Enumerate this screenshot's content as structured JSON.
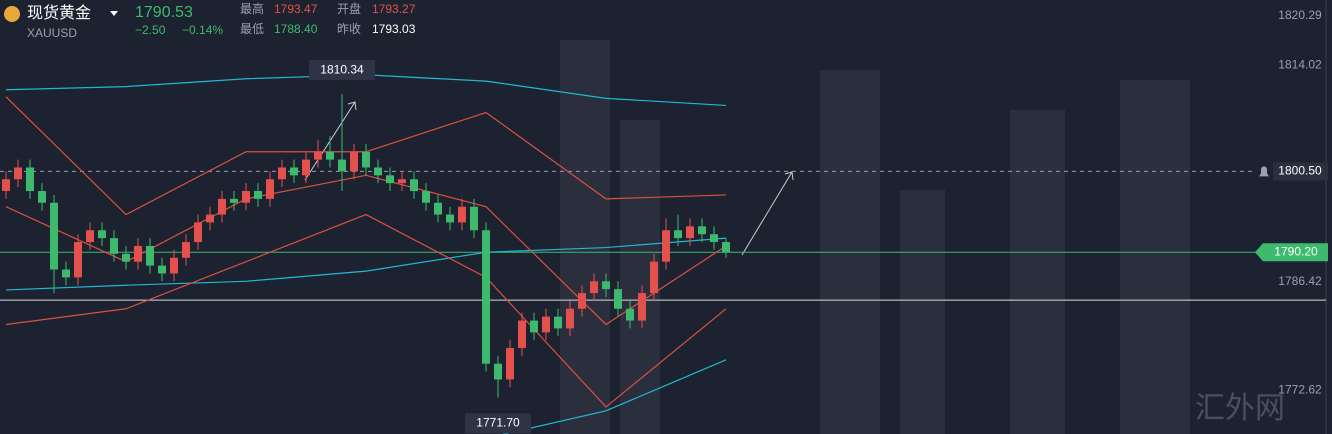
{
  "header": {
    "name": "现货黄金",
    "symbol": "XAUUSD",
    "price": "1790.53",
    "change": "−2.50",
    "change_pct": "−0.14%",
    "high_label": "最高",
    "high": "1793.47",
    "open_label": "开盘",
    "open": "1793.27",
    "low_label": "最低",
    "low": "1788.40",
    "prev_label": "昨收",
    "prev_close": "1793.03"
  },
  "watermark": "汇外网",
  "chart_data": {
    "type": "candlestick",
    "up_color": "#e4514c",
    "down_color": "#3dba6d",
    "open": [
      1798.0,
      1799.5,
      1801.0,
      1798.0,
      1796.5,
      1788.0,
      1787.0,
      1791.5,
      1793.0,
      1792.0,
      1790.0,
      1789.0,
      1791.0,
      1788.5,
      1787.5,
      1789.5,
      1791.5,
      1794.0,
      1795.0,
      1797.0,
      1796.5,
      1798.0,
      1797.0,
      1799.5,
      1801.0,
      1800.0,
      1802.0,
      1803.0,
      1802.0,
      1800.5,
      1803.0,
      1801.0,
      1800.0,
      1799.0,
      1799.5,
      1798.0,
      1796.5,
      1795.0,
      1794.0,
      1796.0,
      1793.0,
      1776.0,
      1774.0,
      1778.0,
      1781.5,
      1780.0,
      1782.0,
      1780.5,
      1783.0,
      1785.0,
      1786.5,
      1785.5,
      1783.0,
      1781.5,
      1785.0,
      1789.0,
      1793.0,
      1792.0,
      1793.5,
      1792.5,
      1791.5
    ],
    "high": [
      1800.5,
      1802.0,
      1802.0,
      1799.0,
      1797.5,
      1789.0,
      1792.5,
      1794.0,
      1794.0,
      1793.0,
      1791.0,
      1792.0,
      1792.0,
      1789.5,
      1790.5,
      1792.5,
      1795.0,
      1796.0,
      1798.0,
      1798.0,
      1799.0,
      1799.0,
      1800.5,
      1802.0,
      1802.0,
      1803.0,
      1804.5,
      1805.0,
      1810.34,
      1804.0,
      1804.0,
      1802.0,
      1801.0,
      1800.5,
      1800.5,
      1799.0,
      1797.5,
      1796.0,
      1797.0,
      1797.0,
      1794.0,
      1777.0,
      1779.0,
      1782.5,
      1782.5,
      1783.0,
      1783.0,
      1784.0,
      1786.0,
      1787.5,
      1787.5,
      1786.5,
      1784.0,
      1786.0,
      1790.0,
      1794.5,
      1795.0,
      1794.5,
      1794.5,
      1793.5,
      1792.0
    ],
    "low": [
      1797.0,
      1798.5,
      1797.0,
      1795.5,
      1785.0,
      1786.0,
      1786.0,
      1790.5,
      1791.0,
      1789.0,
      1788.0,
      1788.0,
      1787.5,
      1786.5,
      1786.5,
      1788.5,
      1790.5,
      1793.0,
      1794.0,
      1795.5,
      1795.5,
      1796.0,
      1796.0,
      1798.5,
      1799.0,
      1799.0,
      1801.0,
      1801.0,
      1798.0,
      1799.5,
      1800.0,
      1799.0,
      1798.0,
      1798.0,
      1797.0,
      1795.5,
      1794.0,
      1793.0,
      1793.0,
      1792.0,
      1775.0,
      1771.7,
      1773.0,
      1777.0,
      1779.0,
      1779.0,
      1779.5,
      1779.5,
      1782.0,
      1784.0,
      1784.5,
      1782.0,
      1780.5,
      1780.5,
      1784.0,
      1788.0,
      1791.0,
      1791.0,
      1791.5,
      1790.5,
      1789.5
    ],
    "close": [
      1799.5,
      1801.0,
      1798.0,
      1796.5,
      1788.0,
      1787.0,
      1791.5,
      1793.0,
      1792.0,
      1790.0,
      1789.0,
      1791.0,
      1788.5,
      1787.5,
      1789.5,
      1791.5,
      1794.0,
      1795.0,
      1797.0,
      1796.5,
      1798.0,
      1797.0,
      1799.5,
      1801.0,
      1800.0,
      1802.0,
      1803.0,
      1802.0,
      1800.5,
      1803.0,
      1801.0,
      1800.0,
      1799.0,
      1799.5,
      1798.0,
      1796.5,
      1795.0,
      1794.0,
      1796.0,
      1793.0,
      1776.0,
      1774.0,
      1778.0,
      1781.5,
      1780.0,
      1782.0,
      1780.5,
      1783.0,
      1785.0,
      1786.5,
      1785.5,
      1783.0,
      1781.5,
      1785.0,
      1789.0,
      1793.0,
      1792.0,
      1793.5,
      1792.5,
      1791.5,
      1790.2
    ],
    "overlays": [
      {
        "color": "#22b8cf",
        "x": [
          0,
          10,
          20,
          30,
          40,
          50,
          60
        ],
        "values": [
          1810.9,
          1811.3,
          1812.3,
          1812.8,
          1812.0,
          1809.8,
          1808.9
        ]
      },
      {
        "color": "#22b8cf",
        "x": [
          0,
          10,
          20,
          30,
          40,
          50,
          60
        ],
        "values": [
          1785.4,
          1786.0,
          1786.5,
          1787.8,
          1790.2,
          1790.8,
          1792.0
        ]
      },
      {
        "color": "#22b8cf",
        "x": [
          0,
          10,
          20,
          30,
          40,
          50,
          60
        ],
        "values": [
          null,
          null,
          null,
          null,
          1766.5,
          1770.0,
          1776.5
        ]
      },
      {
        "color": "#d9513f",
        "x": [
          0,
          10,
          20,
          30,
          40,
          50,
          60
        ],
        "values": [
          1810.0,
          1795.0,
          1803.0,
          1803.0,
          1808.0,
          1797.0,
          1797.5
        ]
      },
      {
        "color": "#d9513f",
        "x": [
          0,
          10,
          20,
          30,
          40,
          50,
          60
        ],
        "values": [
          1796.0,
          1789.0,
          1797.0,
          1800.0,
          1796.0,
          1781.0,
          1791.0
        ]
      },
      {
        "color": "#d9513f",
        "x": [
          0,
          10,
          20,
          30,
          40,
          50,
          60
        ],
        "values": [
          1781.0,
          1783.0,
          1789.0,
          1795.0,
          1787.0,
          1770.5,
          1783.0
        ]
      }
    ],
    "annotations": [
      {
        "value": 1810.34
      },
      {
        "value": 1771.7,
        "label": "1771.70"
      }
    ],
    "alert_line": {
      "value": 1800.5,
      "label": "1800.50"
    },
    "price_line": {
      "value": 1790.2,
      "label": "1790.20",
      "color": "#3dba6d"
    },
    "reference_line": 1784.1,
    "ylim": [
      1767.05,
      1822.33
    ],
    "yticks": [
      1820.29,
      1814.02,
      1786.42,
      1772.62
    ]
  }
}
